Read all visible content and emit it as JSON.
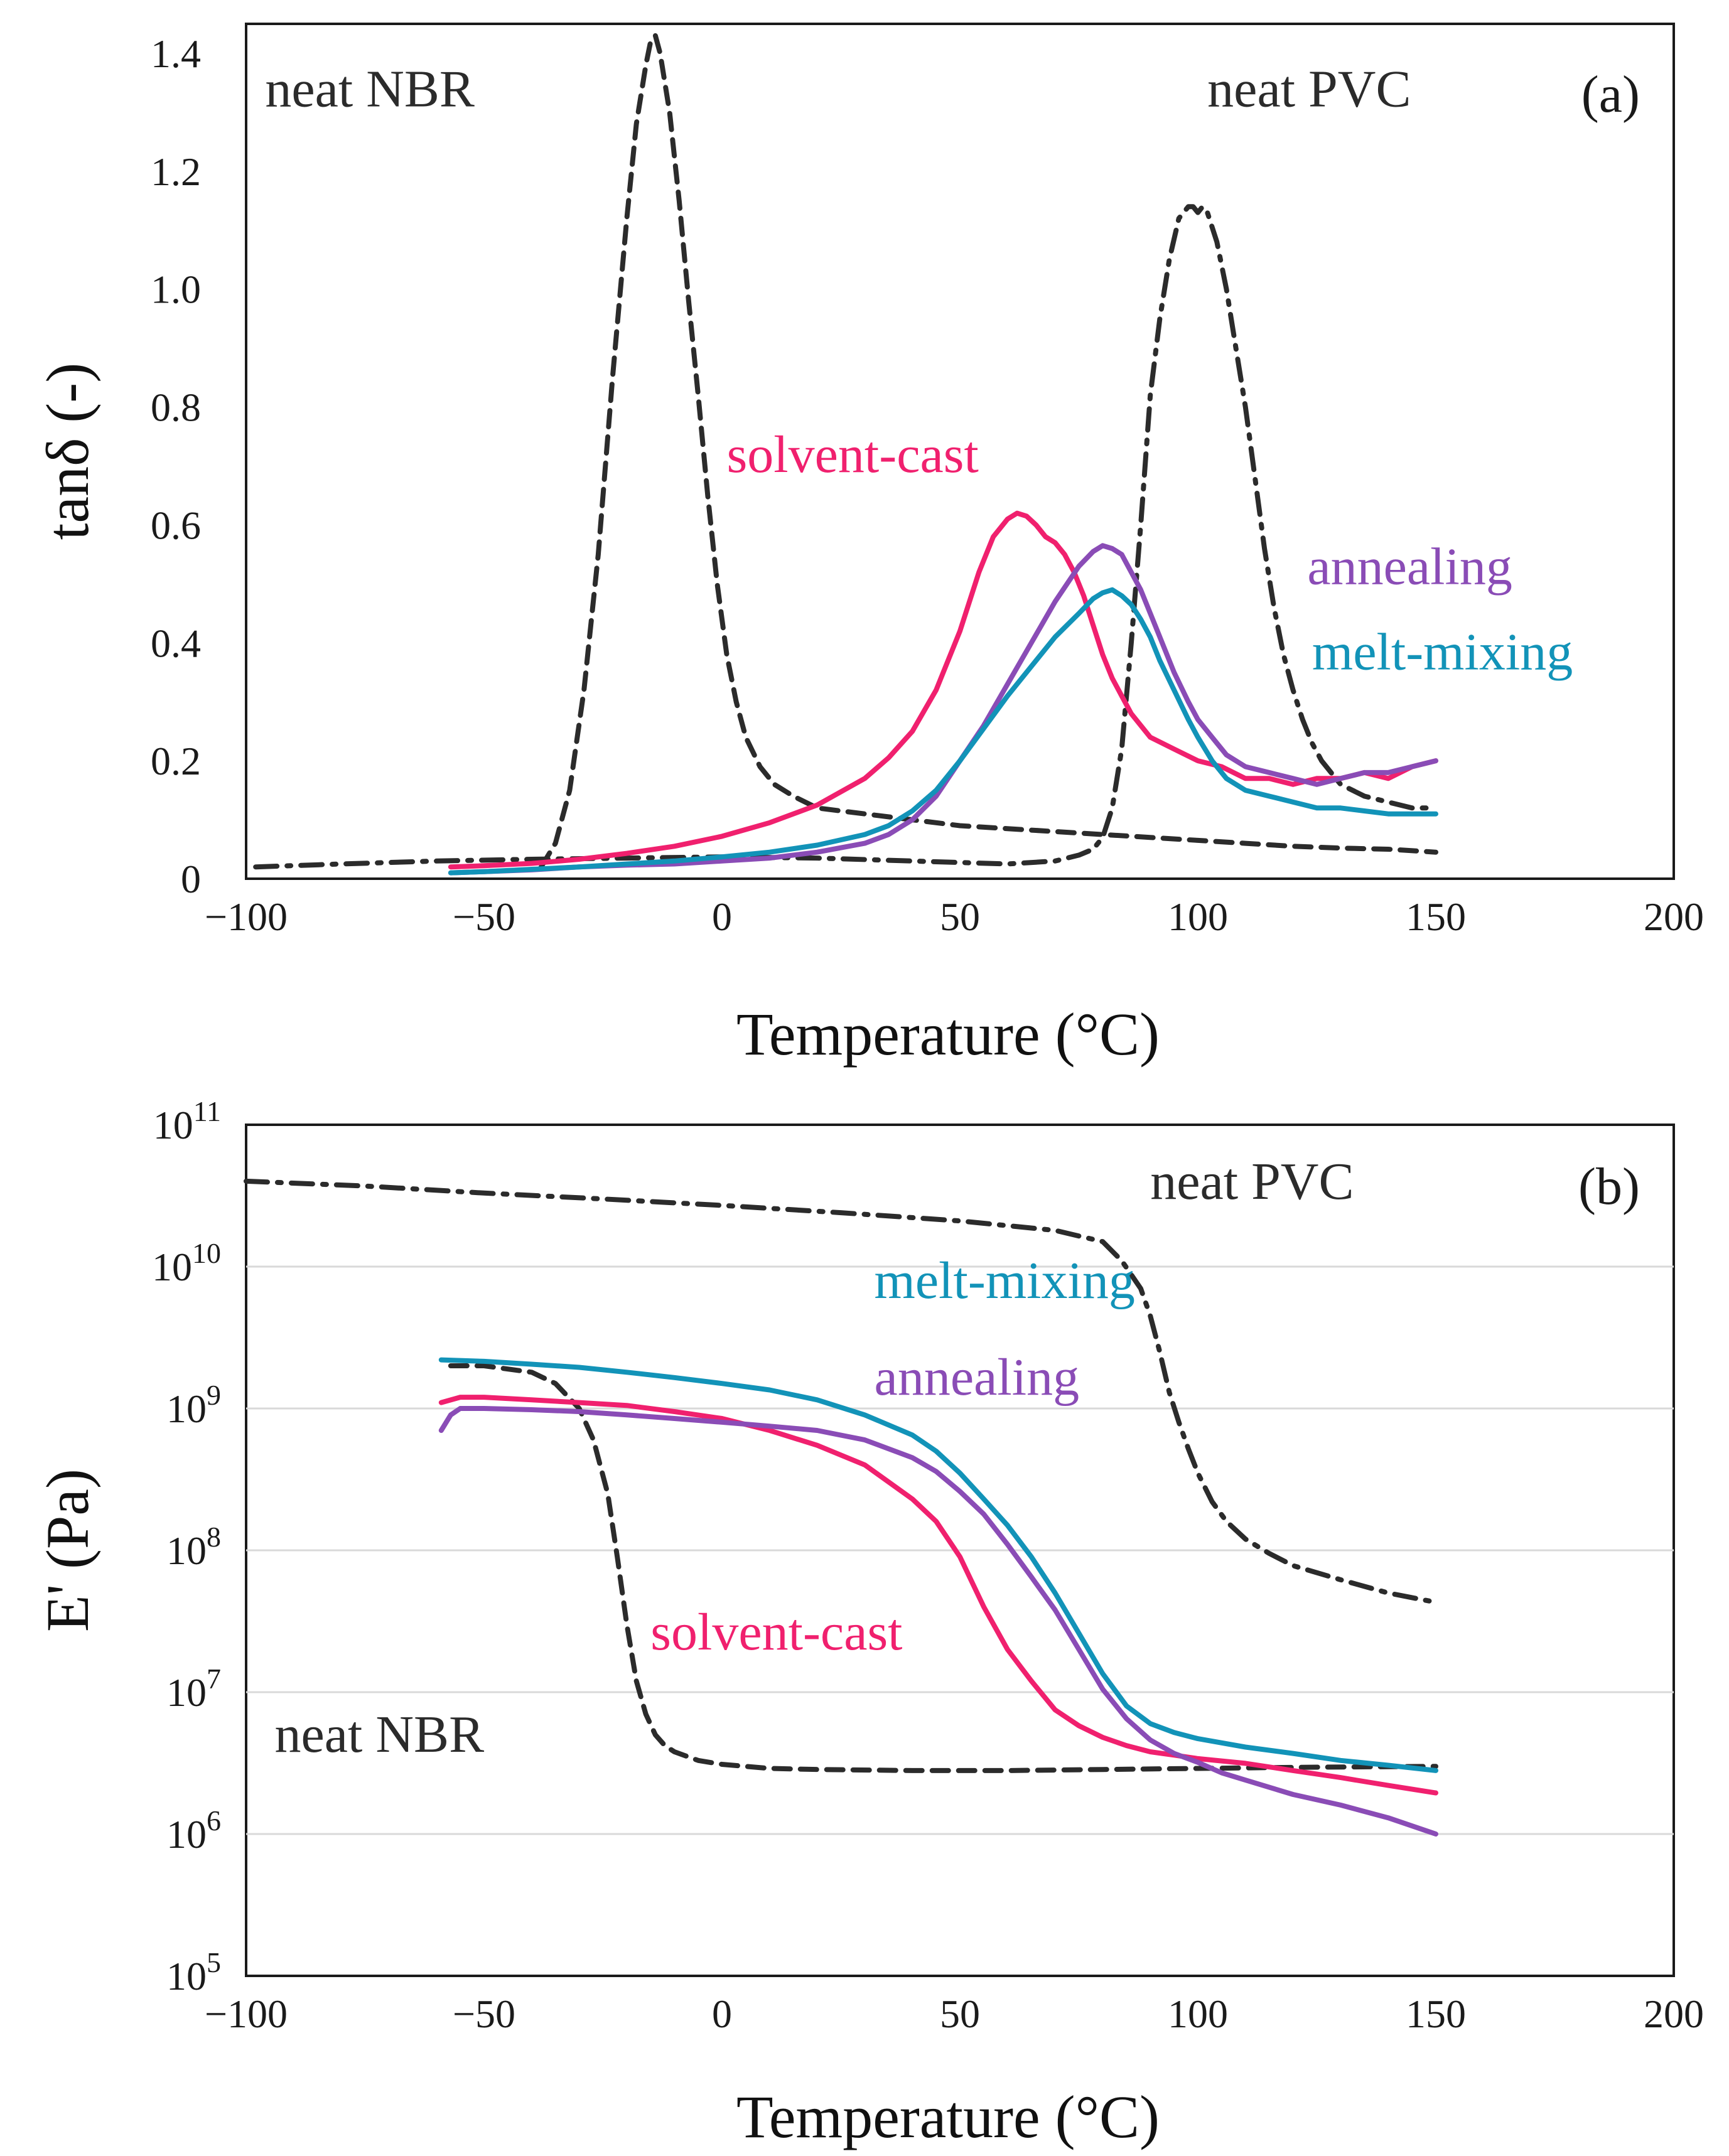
{
  "colors": {
    "neat_nbr": "#2b2b2b",
    "neat_pvc": "#2b2b2b",
    "solvent_cast": "#f0206e",
    "annealing": "#8a4cb6",
    "melt_mixing": "#1293b8"
  },
  "chart_data": [
    {
      "id": "a",
      "type": "line",
      "panel_label": "(a)",
      "xlabel": "Temperature (°C)",
      "ylabel": "tanδ (-)",
      "xlim": [
        -100,
        200
      ],
      "ylim": [
        0,
        1.45
      ],
      "yscale": "linear",
      "xticks": [
        -100,
        -50,
        0,
        50,
        100,
        150,
        200
      ],
      "xtick_labels": [
        "−100",
        "−50",
        "0",
        "50",
        "100",
        "150",
        "200"
      ],
      "yticks": [
        0,
        0.2,
        0.4,
        0.6,
        0.8,
        1.0,
        1.2,
        1.4
      ],
      "ytick_labels": [
        "0",
        "0.2",
        "0.4",
        "0.6",
        "0.8",
        "1.0",
        "1.2",
        "1.4"
      ],
      "grid": false,
      "annotations": [
        {
          "text": "neat NBR",
          "series": "neat_nbr",
          "x": -96,
          "y": 1.31
        },
        {
          "text": "neat PVC",
          "series": "neat_pvc",
          "x": 102,
          "y": 1.31
        },
        {
          "text": "solvent-cast",
          "series": "solvent_cast",
          "x": 1,
          "y": 0.69
        },
        {
          "text": "annealing",
          "series": "annealing",
          "x": 123,
          "y": 0.5
        },
        {
          "text": "melt-mixing",
          "series": "melt_mixing",
          "x": 124,
          "y": 0.355
        }
      ],
      "series": [
        {
          "name": "neat NBR",
          "key": "neat_nbr",
          "dash": "dashed",
          "x": [
            -38,
            -35,
            -32,
            -29,
            -26,
            -23,
            -20,
            -18,
            -16,
            -15,
            -14,
            -13,
            -11,
            -9,
            -7,
            -5,
            -3,
            -1,
            1,
            3,
            5,
            8,
            11,
            15,
            20,
            30,
            40,
            50,
            60,
            70,
            80,
            90,
            100,
            110,
            120,
            130,
            140,
            150
          ],
          "y": [
            0.02,
            0.06,
            0.15,
            0.32,
            0.55,
            0.85,
            1.12,
            1.28,
            1.38,
            1.42,
            1.43,
            1.4,
            1.3,
            1.15,
            0.98,
            0.82,
            0.65,
            0.5,
            0.38,
            0.3,
            0.24,
            0.19,
            0.16,
            0.14,
            0.12,
            0.11,
            0.1,
            0.09,
            0.085,
            0.08,
            0.075,
            0.07,
            0.065,
            0.06,
            0.055,
            0.052,
            0.05,
            0.045
          ]
        },
        {
          "name": "neat PVC",
          "key": "neat_pvc",
          "dash": "dashdot",
          "x": [
            -98,
            -80,
            -60,
            -40,
            -20,
            0,
            20,
            40,
            60,
            70,
            75,
            78,
            80,
            82,
            84,
            86,
            88,
            90,
            92,
            94,
            96,
            98,
            99,
            100,
            101,
            102,
            104,
            106,
            108,
            110,
            112,
            114,
            116,
            118,
            120,
            122,
            124,
            126,
            128,
            130,
            135,
            140,
            145,
            150
          ],
          "y": [
            0.02,
            0.025,
            0.03,
            0.033,
            0.035,
            0.037,
            0.035,
            0.03,
            0.025,
            0.03,
            0.04,
            0.05,
            0.07,
            0.12,
            0.22,
            0.4,
            0.6,
            0.82,
            0.95,
            1.05,
            1.12,
            1.14,
            1.14,
            1.13,
            1.14,
            1.13,
            1.08,
            1.0,
            0.9,
            0.8,
            0.68,
            0.56,
            0.46,
            0.38,
            0.32,
            0.27,
            0.23,
            0.2,
            0.18,
            0.16,
            0.14,
            0.13,
            0.12,
            0.12
          ]
        },
        {
          "name": "solvent-cast",
          "key": "solvent_cast",
          "dash": "solid",
          "x": [
            -57,
            -50,
            -40,
            -30,
            -20,
            -10,
            0,
            10,
            20,
            30,
            35,
            40,
            45,
            50,
            54,
            57,
            60,
            62,
            64,
            66,
            68,
            70,
            72,
            74,
            76,
            78,
            80,
            82,
            84,
            86,
            88,
            90,
            95,
            100,
            105,
            110,
            115,
            120,
            125,
            130,
            135,
            140,
            145,
            150
          ],
          "y": [
            0.02,
            0.022,
            0.026,
            0.033,
            0.043,
            0.055,
            0.072,
            0.095,
            0.125,
            0.17,
            0.205,
            0.25,
            0.32,
            0.42,
            0.52,
            0.58,
            0.61,
            0.62,
            0.615,
            0.6,
            0.58,
            0.57,
            0.55,
            0.52,
            0.48,
            0.43,
            0.38,
            0.34,
            0.31,
            0.28,
            0.26,
            0.24,
            0.22,
            0.2,
            0.19,
            0.17,
            0.17,
            0.16,
            0.17,
            0.17,
            0.18,
            0.17,
            0.19,
            0.2
          ]
        },
        {
          "name": "annealing",
          "key": "annealing",
          "dash": "solid",
          "x": [
            -57,
            -50,
            -40,
            -30,
            -20,
            -10,
            0,
            10,
            20,
            30,
            35,
            40,
            45,
            50,
            55,
            60,
            65,
            70,
            75,
            78,
            80,
            82,
            84,
            86,
            88,
            90,
            92,
            95,
            98,
            100,
            103,
            106,
            110,
            115,
            120,
            125,
            130,
            135,
            140,
            145,
            150
          ],
          "y": [
            0.01,
            0.012,
            0.015,
            0.02,
            0.023,
            0.025,
            0.03,
            0.035,
            0.045,
            0.06,
            0.075,
            0.1,
            0.14,
            0.2,
            0.26,
            0.33,
            0.4,
            0.47,
            0.53,
            0.555,
            0.565,
            0.56,
            0.55,
            0.52,
            0.49,
            0.45,
            0.41,
            0.35,
            0.3,
            0.27,
            0.24,
            0.21,
            0.19,
            0.18,
            0.17,
            0.16,
            0.17,
            0.18,
            0.18,
            0.19,
            0.2
          ]
        },
        {
          "name": "melt-mixing",
          "key": "melt_mixing",
          "dash": "solid",
          "x": [
            -57,
            -50,
            -40,
            -30,
            -20,
            -10,
            0,
            10,
            20,
            30,
            35,
            40,
            45,
            50,
            55,
            60,
            65,
            70,
            75,
            78,
            80,
            82,
            84,
            86,
            88,
            90,
            92,
            95,
            98,
            100,
            103,
            106,
            110,
            115,
            120,
            125,
            130,
            135,
            140,
            145,
            150
          ],
          "y": [
            0.01,
            0.012,
            0.016,
            0.02,
            0.025,
            0.03,
            0.037,
            0.045,
            0.057,
            0.075,
            0.09,
            0.115,
            0.15,
            0.2,
            0.255,
            0.31,
            0.36,
            0.41,
            0.45,
            0.475,
            0.485,
            0.49,
            0.48,
            0.465,
            0.44,
            0.41,
            0.37,
            0.32,
            0.27,
            0.24,
            0.2,
            0.17,
            0.15,
            0.14,
            0.13,
            0.12,
            0.12,
            0.115,
            0.11,
            0.11,
            0.11
          ]
        }
      ]
    },
    {
      "id": "b",
      "type": "line",
      "panel_label": "(b)",
      "xlabel": "Temperature (°C)",
      "ylabel": "E' (Pa)",
      "xlim": [
        -100,
        200
      ],
      "ylim": [
        100000,
        100000000000
      ],
      "yscale": "log",
      "xticks": [
        -100,
        -50,
        0,
        50,
        100,
        150,
        200
      ],
      "xtick_labels": [
        "−100",
        "−50",
        "0",
        "50",
        "100",
        "150",
        "200"
      ],
      "yticks": [
        100000,
        1000000,
        10000000,
        100000000,
        1000000000,
        10000000000,
        100000000000
      ],
      "ytick_base": "10",
      "ytick_exponents": [
        "5",
        "6",
        "7",
        "8",
        "9",
        "10",
        "11"
      ],
      "grid": true,
      "annotations": [
        {
          "text": "neat PVC",
          "series": "neat_pvc",
          "x": 90,
          "y": 30000000000
        },
        {
          "text": "melt-mixing",
          "series": "melt_mixing",
          "x": 32,
          "y": 6000000000
        },
        {
          "text": "annealing",
          "series": "annealing",
          "x": 32,
          "y": 1250000000
        },
        {
          "text": "solvent-cast",
          "series": "solvent_cast",
          "x": -15,
          "y": 20000000
        },
        {
          "text": "neat NBR",
          "series": "neat_nbr",
          "x": -94,
          "y": 3800000
        }
      ],
      "series": [
        {
          "name": "neat PVC",
          "key": "neat_pvc",
          "dash": "dashdot",
          "x": [
            -100,
            -75,
            -50,
            -25,
            0,
            25,
            50,
            70,
            80,
            84,
            88,
            90,
            92,
            94,
            96,
            98,
            100,
            103,
            106,
            110,
            115,
            120,
            130,
            140,
            150
          ],
          "y": [
            40000000000,
            37000000000,
            33000000000,
            30000000000,
            27000000000,
            24000000000,
            21000000000,
            18000000000,
            15000000000,
            11000000000,
            7000000000,
            4500000000,
            2500000000,
            1300000000,
            800000000,
            520000000,
            350000000,
            220000000,
            160000000,
            120000000,
            95000000,
            78000000,
            62000000,
            50000000,
            43000000
          ]
        },
        {
          "name": "neat NBR",
          "key": "neat_nbr",
          "dash": "dashed",
          "x": [
            -57,
            -50,
            -40,
            -35,
            -30,
            -27,
            -24,
            -22,
            -20,
            -18,
            -16,
            -14,
            -12,
            -10,
            -5,
            0,
            10,
            20,
            40,
            60,
            80,
            100,
            120,
            150
          ],
          "y": [
            2000000000,
            2000000000,
            1800000000,
            1500000000,
            1000000000,
            600000000,
            250000000,
            90000000,
            30000000,
            12000000,
            7000000,
            5000000,
            4200000,
            3800000,
            3300000,
            3100000,
            2900000,
            2850000,
            2800000,
            2800000,
            2850000,
            2900000,
            2950000,
            3000000
          ]
        },
        {
          "name": "melt-mixing",
          "key": "melt_mixing",
          "dash": "solid",
          "x": [
            -59,
            -50,
            -40,
            -30,
            -20,
            -10,
            0,
            10,
            20,
            30,
            40,
            45,
            50,
            55,
            60,
            65,
            70,
            75,
            80,
            85,
            90,
            95,
            100,
            110,
            120,
            130,
            140,
            150
          ],
          "y": [
            2200000000,
            2150000000,
            2050000000,
            1950000000,
            1800000000,
            1650000000,
            1500000000,
            1350000000,
            1150000000,
            900000000,
            650000000,
            500000000,
            350000000,
            230000000,
            150000000,
            90000000,
            50000000,
            26000000,
            13500000,
            8000000,
            6000000,
            5200000,
            4700000,
            4100000,
            3700000,
            3300000,
            3050000,
            2800000
          ]
        },
        {
          "name": "solvent-cast",
          "key": "solvent_cast",
          "dash": "solid",
          "x": [
            -59,
            -55,
            -50,
            -40,
            -30,
            -20,
            -10,
            0,
            10,
            20,
            30,
            40,
            45,
            50,
            55,
            60,
            65,
            70,
            75,
            80,
            85,
            90,
            95,
            100,
            110,
            120,
            130,
            140,
            150
          ],
          "y": [
            1100000000,
            1200000000,
            1200000000,
            1150000000,
            1100000000,
            1050000000,
            950000000,
            850000000,
            700000000,
            550000000,
            400000000,
            230000000,
            160000000,
            90000000,
            40000000,
            20000000,
            12000000,
            7500000,
            5800000,
            4800000,
            4200000,
            3800000,
            3600000,
            3400000,
            3150000,
            2800000,
            2500000,
            2200000,
            1950000
          ]
        },
        {
          "name": "annealing",
          "key": "annealing",
          "dash": "solid",
          "x": [
            -59,
            -57,
            -55,
            -50,
            -40,
            -30,
            -20,
            -10,
            0,
            10,
            20,
            30,
            40,
            45,
            50,
            55,
            60,
            65,
            70,
            75,
            80,
            85,
            90,
            95,
            100,
            105,
            110,
            120,
            130,
            140,
            150
          ],
          "y": [
            700000000,
            900000000,
            1000000000,
            1000000000,
            980000000,
            950000000,
            900000000,
            850000000,
            800000000,
            750000000,
            700000000,
            600000000,
            450000000,
            360000000,
            260000000,
            180000000,
            110000000,
            65000000,
            38000000,
            20000000,
            10500000,
            6500000,
            4600000,
            3700000,
            3200000,
            2700000,
            2400000,
            1900000,
            1600000,
            1300000,
            1000000
          ]
        }
      ]
    }
  ]
}
